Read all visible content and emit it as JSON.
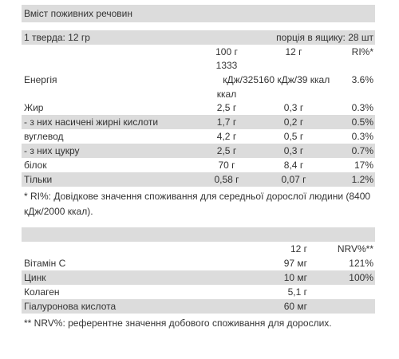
{
  "title": "Вміст поживних речовин",
  "serving": {
    "size": "1 тверда: 12 гр",
    "per_box": "порція в ящику: 28 шт"
  },
  "nutrition": {
    "headers": [
      "100 г",
      "12 г",
      "RI%*"
    ],
    "energy": {
      "label": "Енергія",
      "per100_line1": "1333",
      "per100_line2": "кДж/325",
      "per12": "160 кДж/39 ккал",
      "per100_line3": "ккал",
      "ri": "3.6%"
    },
    "rows": [
      {
        "label": "Жир",
        "per100": "2,5 г",
        "per12": "0,3 г",
        "ri": "0.3%"
      },
      {
        "label": "- з них насичені жирні кислоти",
        "per100": "1,7 г",
        "per12": "0,2 г",
        "ri": "0.5%"
      },
      {
        "label": "вуглевод",
        "per100": "4,2 г",
        "per12": "0,5 г",
        "ri": "0.3%"
      },
      {
        "label": "- з них цукру",
        "per100": "2,5 г",
        "per12": "0,3 г",
        "ri": "0.7%"
      },
      {
        "label": "білок",
        "per100": "70 г",
        "per12": "8,4 г",
        "ri": "17%"
      },
      {
        "label": "Тільки",
        "per100": "0,58 г",
        "per12": "0,07 г",
        "ri": "1.2%"
      }
    ],
    "note": "* RI%: Довідкове значення споживання для середньої дорослої людини (8400 кДж/2000 ккал)."
  },
  "vitamins": {
    "headers": [
      "12 г",
      "NRV%**"
    ],
    "rows": [
      {
        "label": "Вітамін С",
        "amount": "97 мг",
        "nrv": "121%"
      },
      {
        "label": "Цинк",
        "amount": "10 мг",
        "nrv": "100%"
      },
      {
        "label": "Колаген",
        "amount": "5,1 г",
        "nrv": ""
      },
      {
        "label": "Гіалуронова кислота",
        "amount": "60 мг",
        "nrv": ""
      }
    ],
    "note": "** NRV%: референтне значення добового споживання для дорослих."
  }
}
